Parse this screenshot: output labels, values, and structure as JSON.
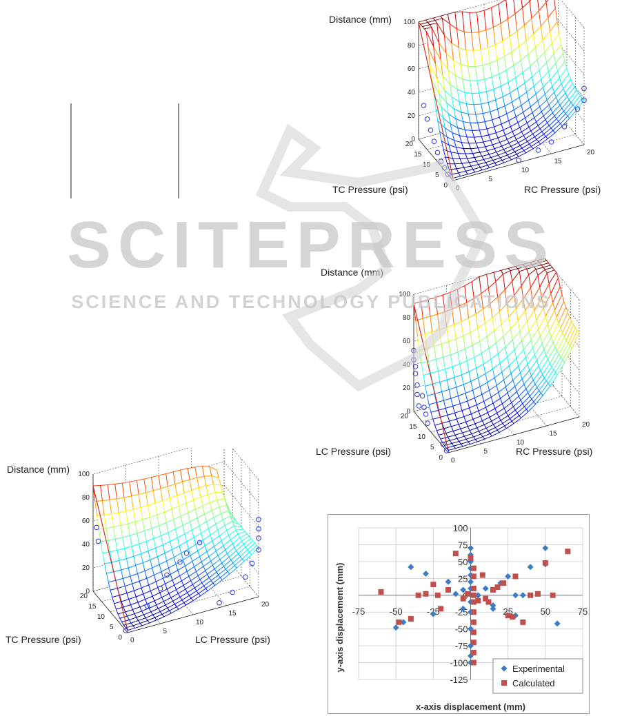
{
  "watermark": {
    "brand": "SCITEPRESS",
    "tagline": "SCIENCE AND TECHNOLOGY PUBLICATIONS"
  },
  "chart_data": [
    {
      "id": "surface_top",
      "type": "surface3d",
      "zlabel": "Distance (mm)",
      "ylabel": "TC Pressure (psi)",
      "xlabel": "RC Pressure (psi)",
      "x_ticks": [
        "0",
        "5",
        "10",
        "15",
        "20"
      ],
      "y_ticks": [
        "0",
        "5",
        "10",
        "15",
        "20"
      ],
      "z_ticks": [
        "0",
        "20",
        "40",
        "60",
        "80",
        "100"
      ],
      "xlim": [
        0,
        20
      ],
      "ylim": [
        0,
        20
      ],
      "zlim": [
        0,
        100
      ],
      "colormap": "jet",
      "points": [
        {
          "a": 0,
          "b": 3,
          "z": 0
        },
        {
          "a": 0,
          "b": 5,
          "z": 2
        },
        {
          "a": 0,
          "b": 7,
          "z": 4
        },
        {
          "a": 0,
          "b": 9,
          "z": 8
        },
        {
          "a": 0,
          "b": 11,
          "z": 14
        },
        {
          "a": 0,
          "b": 13,
          "z": 20
        },
        {
          "a": 0,
          "b": 15,
          "z": 26
        },
        {
          "a": 0,
          "b": 17,
          "z": 34
        },
        {
          "a": 10,
          "b": 0,
          "z": 2
        },
        {
          "a": 13,
          "b": 0,
          "z": 6
        },
        {
          "a": 15,
          "b": 0,
          "z": 10
        },
        {
          "a": 17,
          "b": 0,
          "z": 20
        },
        {
          "a": 19,
          "b": 0,
          "z": 32
        },
        {
          "a": 20,
          "b": 0,
          "z": 38
        },
        {
          "a": 20,
          "b": 0,
          "z": 48
        }
      ]
    },
    {
      "id": "surface_middle",
      "type": "surface3d",
      "zlabel": "Distance (mm)",
      "ylabel": "LC Pressure (psi)",
      "xlabel": "RC Pressure (psi)",
      "x_ticks": [
        "0",
        "5",
        "10",
        "15",
        "20"
      ],
      "y_ticks": [
        "0",
        "5",
        "10",
        "15",
        "20"
      ],
      "z_ticks": [
        "0",
        "20",
        "40",
        "60",
        "80",
        "100"
      ],
      "xlim": [
        0,
        20
      ],
      "ylim": [
        0,
        20
      ],
      "zlim": [
        0,
        100
      ],
      "colormap": "jet",
      "points": [
        {
          "a": 0,
          "b": 20,
          "z": 52
        },
        {
          "a": 0,
          "b": 20,
          "z": 44
        },
        {
          "a": 0,
          "b": 19,
          "z": 40
        },
        {
          "a": 0,
          "b": 19,
          "z": 34
        },
        {
          "a": 0,
          "b": 18,
          "z": 26
        },
        {
          "a": 0,
          "b": 18,
          "z": 18
        },
        {
          "a": 0,
          "b": 17,
          "z": 10
        },
        {
          "a": 0,
          "b": 15,
          "z": 22
        },
        {
          "a": 0,
          "b": 14,
          "z": 14
        },
        {
          "a": 0,
          "b": 13,
          "z": 10
        },
        {
          "a": 0,
          "b": 12,
          "z": 4
        },
        {
          "a": 0,
          "b": 3,
          "z": 2
        },
        {
          "a": 0,
          "b": 1,
          "z": 0
        }
      ]
    },
    {
      "id": "surface_bottom",
      "type": "surface3d",
      "zlabel": "Distance (mm)",
      "ylabel": "TC Pressure (psi)",
      "xlabel": "LC Pressure (psi)",
      "x_ticks": [
        "0",
        "5",
        "10",
        "15",
        "20"
      ],
      "y_ticks": [
        "0",
        "5",
        "10",
        "15",
        "20"
      ],
      "z_ticks": [
        "0",
        "20",
        "40",
        "60",
        "80",
        "100"
      ],
      "xlim": [
        0,
        20
      ],
      "ylim": [
        0,
        20
      ],
      "zlim": [
        0,
        100
      ],
      "colormap": "jet",
      "points": [
        {
          "a": 0,
          "b": 18,
          "z": 58
        },
        {
          "a": 0,
          "b": 17,
          "z": 48
        },
        {
          "a": 0,
          "b": 1,
          "z": 0
        },
        {
          "a": 3,
          "b": 0,
          "z": 18
        },
        {
          "a": 5,
          "b": 0,
          "z": 30
        },
        {
          "a": 6,
          "b": 0,
          "z": 40
        },
        {
          "a": 8,
          "b": 0,
          "z": 48
        },
        {
          "a": 9,
          "b": 0,
          "z": 54
        },
        {
          "a": 11,
          "b": 0,
          "z": 60
        },
        {
          "a": 14,
          "b": 0,
          "z": 4
        },
        {
          "a": 16,
          "b": 0,
          "z": 10
        },
        {
          "a": 18,
          "b": 0,
          "z": 20
        },
        {
          "a": 19,
          "b": 0,
          "z": 30
        },
        {
          "a": 20,
          "b": 0,
          "z": 40
        },
        {
          "a": 20,
          "b": 0,
          "z": 50
        },
        {
          "a": 20,
          "b": 0,
          "z": 58
        },
        {
          "a": 20,
          "b": 0,
          "z": 66
        }
      ]
    },
    {
      "id": "scatter_displacement",
      "type": "scatter",
      "xlabel": "x-axis displacement (mm)",
      "ylabel": "y-axis displacement (mm)",
      "xlim": [
        -75,
        75
      ],
      "ylim": [
        -125,
        100
      ],
      "x_ticks": [
        "-75",
        "-50",
        "-25",
        "0",
        "25",
        "50",
        "75"
      ],
      "y_ticks": [
        "100",
        "75",
        "50",
        "25",
        "0",
        "-25",
        "-50",
        "-75",
        "-100",
        "-125"
      ],
      "legend": "bottom-right",
      "series": [
        {
          "name": "Experimental",
          "color": "#3b7dc4",
          "marker": "diamond",
          "x": [
            -50,
            -45,
            -40,
            -30,
            -25,
            -10,
            -5,
            0,
            0,
            0,
            0,
            0,
            0,
            0,
            0,
            0,
            0,
            0,
            0,
            0,
            5,
            10,
            15,
            20,
            25,
            30,
            35,
            40,
            50,
            58,
            -15,
            -5,
            15,
            30,
            35,
            50
          ],
          "y": [
            -48,
            -40,
            42,
            32,
            -28,
            2,
            8,
            70,
            60,
            50,
            40,
            30,
            20,
            10,
            -10,
            -25,
            -50,
            -75,
            -90,
            -100,
            0,
            10,
            -15,
            18,
            28,
            -30,
            0,
            42,
            46,
            -42,
            20,
            -20,
            -20,
            0,
            -40,
            70
          ]
        },
        {
          "name": "Calculated",
          "color": "#c0504d",
          "marker": "square",
          "x": [
            -60,
            -48,
            -40,
            -35,
            -30,
            -25,
            -22,
            -20,
            -15,
            -10,
            -5,
            -2,
            0,
            2,
            2,
            2,
            2,
            2,
            2,
            2,
            2,
            2,
            2,
            2,
            5,
            8,
            10,
            12,
            15,
            18,
            22,
            25,
            28,
            30,
            35,
            40,
            45,
            50,
            55,
            65
          ],
          "y": [
            5,
            -40,
            -35,
            0,
            2,
            16,
            0,
            -20,
            8,
            62,
            -5,
            2,
            55,
            40,
            28,
            10,
            0,
            -10,
            -25,
            -40,
            -55,
            -70,
            -85,
            -100,
            -8,
            30,
            -5,
            -10,
            8,
            12,
            18,
            -30,
            -32,
            28,
            -40,
            0,
            2,
            48,
            0,
            65
          ]
        }
      ]
    }
  ]
}
